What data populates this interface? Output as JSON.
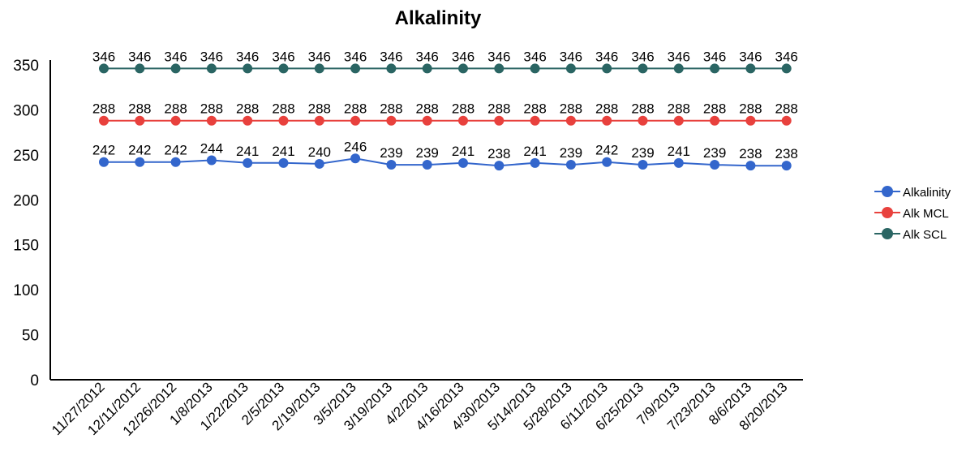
{
  "chart_data": {
    "type": "line",
    "title": "Alkalinity",
    "xlabel": "",
    "ylabel": "",
    "ylim": [
      0,
      350
    ],
    "yticks": [
      0,
      50,
      100,
      150,
      200,
      250,
      300,
      350
    ],
    "grid": false,
    "legend_position": "right",
    "categories": [
      "11/27/2012",
      "12/11/2012",
      "12/26/2012",
      "1/8/2013",
      "1/22/2013",
      "2/5/2013",
      "2/19/2013",
      "3/5/2013",
      "3/19/2013",
      "4/2/2013",
      "4/16/2013",
      "4/30/2013",
      "5/14/2013",
      "5/28/2013",
      "6/11/2013",
      "6/25/2013",
      "7/9/2013",
      "7/23/2013",
      "8/6/2013",
      "8/20/2013"
    ],
    "series": [
      {
        "name": "Alkalinity",
        "color": "#3366cc",
        "values": [
          242,
          242,
          242,
          244,
          241,
          241,
          240,
          246,
          239,
          239,
          241,
          238,
          241,
          239,
          242,
          239,
          241,
          239,
          238,
          238
        ]
      },
      {
        "name": "Alk MCL",
        "color": "#e8413d",
        "values": [
          288,
          288,
          288,
          288,
          288,
          288,
          288,
          288,
          288,
          288,
          288,
          288,
          288,
          288,
          288,
          288,
          288,
          288,
          288,
          288
        ]
      },
      {
        "name": "Alk SCL",
        "color": "#2a6563",
        "values": [
          346,
          346,
          346,
          346,
          346,
          346,
          346,
          346,
          346,
          346,
          346,
          346,
          346,
          346,
          346,
          346,
          346,
          346,
          346,
          346
        ]
      }
    ]
  }
}
